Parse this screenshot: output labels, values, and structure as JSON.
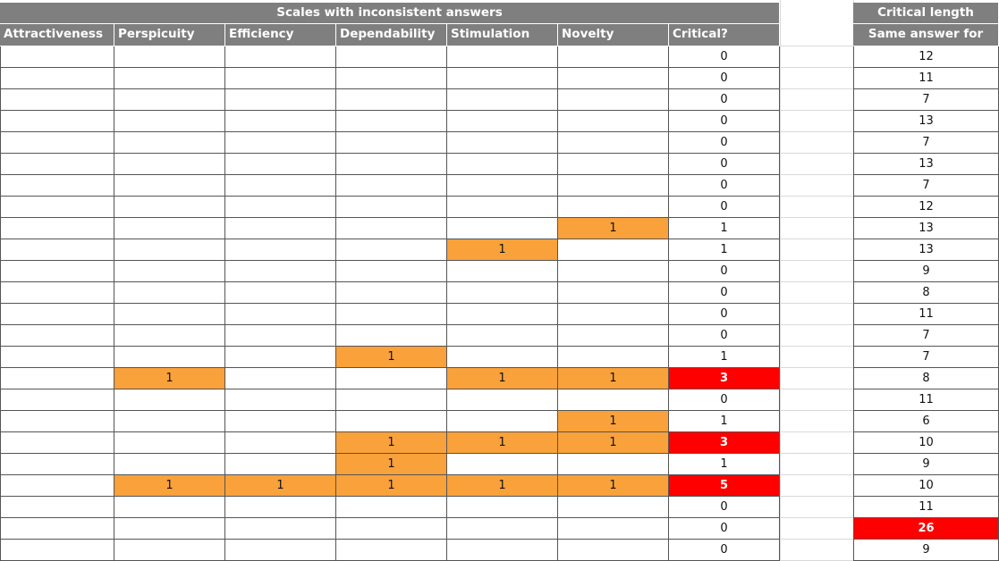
{
  "main_table": {
    "title": "Scales with inconsistent answers",
    "columns": [
      "Attractiveness",
      "Perspicuity",
      "Efficiency",
      "Dependability",
      "Stimulation",
      "Novelty",
      "Critical?"
    ],
    "rows": [
      [
        "",
        "",
        "",
        "",
        "",
        "",
        "0"
      ],
      [
        "",
        "",
        "",
        "",
        "",
        "",
        "0"
      ],
      [
        "",
        "",
        "",
        "",
        "",
        "",
        "0"
      ],
      [
        "",
        "",
        "",
        "",
        "",
        "",
        "0"
      ],
      [
        "",
        "",
        "",
        "",
        "",
        "",
        "0"
      ],
      [
        "",
        "",
        "",
        "",
        "",
        "",
        "0"
      ],
      [
        "",
        "",
        "",
        "",
        "",
        "",
        "0"
      ],
      [
        "",
        "",
        "",
        "",
        "",
        "",
        "0"
      ],
      [
        "",
        "",
        "",
        "",
        "",
        "1",
        "1"
      ],
      [
        "",
        "",
        "",
        "",
        "1",
        "",
        "1"
      ],
      [
        "",
        "",
        "",
        "",
        "",
        "",
        "0"
      ],
      [
        "",
        "",
        "",
        "",
        "",
        "",
        "0"
      ],
      [
        "",
        "",
        "",
        "",
        "",
        "",
        "0"
      ],
      [
        "",
        "",
        "",
        "",
        "",
        "",
        "0"
      ],
      [
        "",
        "",
        "",
        "1",
        "",
        "",
        "1"
      ],
      [
        "",
        "1",
        "",
        "",
        "1",
        "1",
        "3"
      ],
      [
        "",
        "",
        "",
        "",
        "",
        "",
        "0"
      ],
      [
        "",
        "",
        "",
        "",
        "",
        "1",
        "1"
      ],
      [
        "",
        "",
        "",
        "1",
        "1",
        "1",
        "3"
      ],
      [
        "",
        "",
        "",
        "1",
        "",
        "",
        "1"
      ],
      [
        "",
        "1",
        "1",
        "1",
        "1",
        "1",
        "5"
      ],
      [
        "",
        "",
        "",
        "",
        "",
        "",
        "0"
      ],
      [
        "",
        "",
        "",
        "",
        "",
        "",
        "0"
      ],
      [
        "",
        "",
        "",
        "",
        "",
        "",
        "0"
      ]
    ],
    "highlight_colors": {
      "flag": "#f9a13a",
      "critical": "#ff0000",
      "header": "#7f7f7f"
    }
  },
  "side_table": {
    "header1": "Critical length",
    "header2": "Same answer for",
    "values": [
      "12",
      "11",
      "7",
      "13",
      "7",
      "13",
      "7",
      "12",
      "13",
      "13",
      "9",
      "8",
      "11",
      "7",
      "7",
      "8",
      "11",
      "6",
      "10",
      "9",
      "10",
      "11",
      "26",
      "9"
    ],
    "critical_threshold": 26
  }
}
